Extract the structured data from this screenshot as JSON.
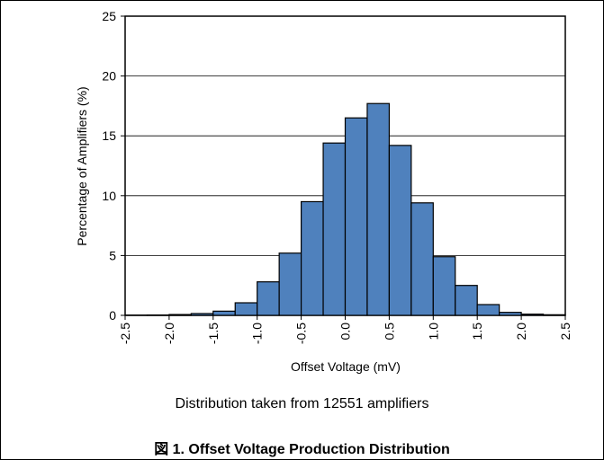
{
  "caption_note": "Distribution taken from 12551 amplifiers",
  "figure_title": "図 1. Offset Voltage Production Distribution",
  "chart_data": {
    "type": "bar",
    "xlabel": "Offset Voltage (mV)",
    "ylabel": "Percentage of Amplifiers (%)",
    "ylim": [
      0,
      25
    ],
    "xlim": [
      -2.5,
      2.5
    ],
    "yticks": [
      0,
      5,
      10,
      15,
      20,
      25
    ],
    "xticks": [
      "-2.5",
      "-2.0",
      "-1.5",
      "-1.0",
      "-0.5",
      "0.0",
      "0.5",
      "1.0",
      "1.5",
      "2.0",
      "2.5"
    ],
    "bin_width": 0.25,
    "bin_starts": [
      -2.5,
      -2.25,
      -2.0,
      -1.75,
      -1.5,
      -1.25,
      -1.0,
      -0.75,
      -0.5,
      -0.25,
      0.0,
      0.25,
      0.5,
      0.75,
      1.0,
      1.25,
      1.5,
      1.75,
      2.0,
      2.25
    ],
    "values": [
      0.02,
      0.03,
      0.07,
      0.15,
      0.35,
      1.05,
      2.8,
      5.2,
      9.5,
      14.4,
      16.5,
      17.7,
      14.2,
      9.4,
      4.9,
      2.5,
      0.9,
      0.25,
      0.1,
      0.05
    ],
    "bar_color": "#4F81BD",
    "grid": true
  }
}
